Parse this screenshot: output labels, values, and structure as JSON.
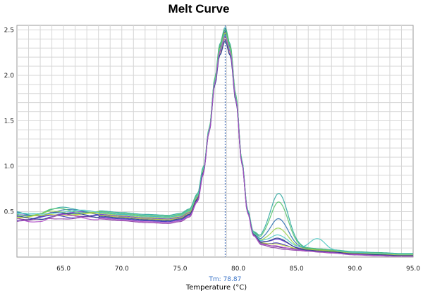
{
  "chart_data": {
    "type": "line",
    "title": "Melt Curve",
    "xlabel": "Temperature (°C)",
    "ylabel": "",
    "xlim": [
      61.0,
      95.0
    ],
    "ylim": [
      0.0,
      2.55
    ],
    "xticks": [
      "65.0",
      "70.0",
      "75.0",
      "80.0",
      "85.0",
      "90.0",
      "95.0"
    ],
    "yticks": [
      "0.5",
      "1.0",
      "1.5",
      "2.0",
      "2.5"
    ],
    "grid": true,
    "tm": {
      "label": "Tm: 78.87",
      "value": 78.87
    },
    "base_curve": {
      "x": [
        61,
        62,
        63,
        64,
        64.8,
        66,
        68,
        70,
        72,
        74,
        75,
        75.8,
        76.5,
        77,
        77.5,
        78,
        78.4,
        78.87,
        79.3,
        79.8,
        80.3,
        80.8,
        81.3,
        82,
        83,
        84,
        85,
        86,
        87,
        88,
        90,
        92,
        94,
        95
      ],
      "y": [
        0.44,
        0.43,
        0.44,
        0.47,
        0.48,
        0.47,
        0.46,
        0.44,
        0.42,
        0.41,
        0.43,
        0.48,
        0.65,
        0.95,
        1.4,
        1.95,
        2.3,
        2.48,
        2.3,
        1.75,
        1.05,
        0.5,
        0.25,
        0.15,
        0.12,
        0.1,
        0.09,
        0.08,
        0.07,
        0.06,
        0.04,
        0.03,
        0.02,
        0.02
      ]
    },
    "series": [
      {
        "color": "#5b2a86",
        "offset": 0.0,
        "peak": 2.48,
        "bump": 0.0
      },
      {
        "color": "#3a2dbf",
        "offset": -0.02,
        "peak": 2.44,
        "bump": 0.05
      },
      {
        "color": "#8d3fa6",
        "offset": -0.04,
        "peak": 2.4,
        "bump": 0.0
      },
      {
        "color": "#6a3ad0",
        "offset": 0.01,
        "peak": 2.46,
        "bump": 0.08
      },
      {
        "color": "#2b6fb0",
        "offset": 0.03,
        "peak": 2.5,
        "bump": 0.3
      },
      {
        "color": "#2fa7a0",
        "offset": 0.05,
        "peak": 2.53,
        "bump": 0.57
      },
      {
        "color": "#53c46a",
        "offset": 0.04,
        "peak": 2.51,
        "bump": 0.48
      },
      {
        "color": "#9ad04a",
        "offset": 0.02,
        "peak": 2.47,
        "bump": 0.2
      },
      {
        "color": "#c7d93a",
        "offset": 0.0,
        "peak": 2.42,
        "bump": 0.03
      },
      {
        "color": "#4cc7c2",
        "offset": 0.03,
        "peak": 2.45,
        "bump": 0.12,
        "bump2": 0.12
      },
      {
        "color": "#1f3c8c",
        "offset": -0.01,
        "peak": 2.38,
        "bump": 0.1
      },
      {
        "color": "#b14fc8",
        "offset": -0.03,
        "peak": 2.43,
        "bump": 0.02
      }
    ]
  }
}
